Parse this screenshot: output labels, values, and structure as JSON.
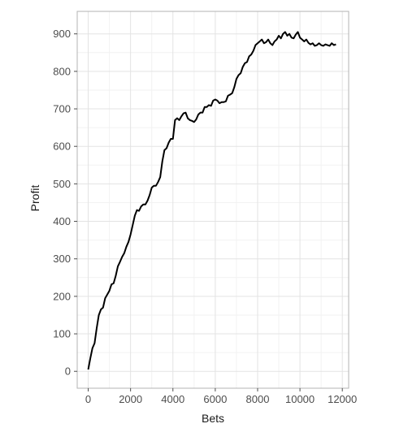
{
  "chart_data": {
    "type": "line",
    "xlabel": "Bets",
    "ylabel": "Profit",
    "xlim": [
      -520,
      12300
    ],
    "ylim": [
      -45,
      960
    ],
    "x_ticks": [
      0,
      2000,
      4000,
      6000,
      8000,
      10000,
      12000
    ],
    "x_tick_labels": [
      "0",
      "2000",
      "4000",
      "6000",
      "8000",
      "10000",
      "12000"
    ],
    "y_ticks": [
      0,
      100,
      200,
      300,
      400,
      500,
      600,
      700,
      800,
      900
    ],
    "y_tick_labels": [
      "0",
      "100",
      "200",
      "300",
      "400",
      "500",
      "600",
      "700",
      "800",
      "900"
    ],
    "grid": true,
    "legend": "none",
    "colors": {
      "line": "#000000",
      "grid_major": "#e3e3e3",
      "grid_minor": "#f2f2f2",
      "panel_border": "#b3b3b3",
      "background": "#ffffff"
    },
    "series": [
      {
        "x": [
          0,
          100,
          200,
          300,
          400,
          500,
          600,
          700,
          800,
          900,
          1000,
          1100,
          1200,
          1300,
          1400,
          1500,
          1600,
          1700,
          1800,
          1900,
          2000,
          2100,
          2200,
          2300,
          2400,
          2500,
          2600,
          2700,
          2800,
          2900,
          3000,
          3100,
          3200,
          3300,
          3400,
          3500,
          3600,
          3700,
          3800,
          3900,
          4000,
          4100,
          4200,
          4300,
          4400,
          4500,
          4600,
          4700,
          4800,
          4900,
          5000,
          5100,
          5200,
          5300,
          5400,
          5500,
          5600,
          5700,
          5800,
          5900,
          6000,
          6100,
          6200,
          6300,
          6400,
          6500,
          6600,
          6700,
          6800,
          6900,
          7000,
          7100,
          7200,
          7300,
          7400,
          7500,
          7600,
          7700,
          7800,
          7900,
          8000,
          8100,
          8200,
          8300,
          8400,
          8500,
          8600,
          8700,
          8800,
          8900,
          9000,
          9100,
          9200,
          9300,
          9400,
          9500,
          9600,
          9700,
          9800,
          9900,
          10000,
          10100,
          10200,
          10300,
          10400,
          10500,
          10600,
          10700,
          10800,
          10900,
          11000,
          11100,
          11200,
          11300,
          11400,
          11500,
          11600,
          11700
        ],
        "y": [
          5,
          35,
          62,
          75,
          115,
          150,
          165,
          170,
          195,
          205,
          215,
          232,
          235,
          255,
          280,
          292,
          305,
          315,
          332,
          345,
          365,
          390,
          415,
          430,
          428,
          440,
          445,
          445,
          455,
          470,
          490,
          495,
          495,
          505,
          518,
          560,
          590,
          595,
          610,
          620,
          620,
          670,
          675,
          670,
          680,
          688,
          690,
          675,
          670,
          668,
          665,
          672,
          685,
          690,
          690,
          705,
          705,
          710,
          708,
          722,
          725,
          722,
          715,
          718,
          718,
          720,
          735,
          738,
          742,
          758,
          780,
          790,
          795,
          812,
          822,
          825,
          840,
          845,
          855,
          870,
          875,
          880,
          885,
          875,
          878,
          885,
          875,
          870,
          880,
          885,
          895,
          888,
          900,
          905,
          895,
          900,
          890,
          888,
          898,
          905,
          890,
          885,
          880,
          885,
          876,
          872,
          875,
          868,
          870,
          875,
          870,
          868,
          872,
          870,
          868,
          875,
          870,
          872
        ]
      }
    ]
  }
}
